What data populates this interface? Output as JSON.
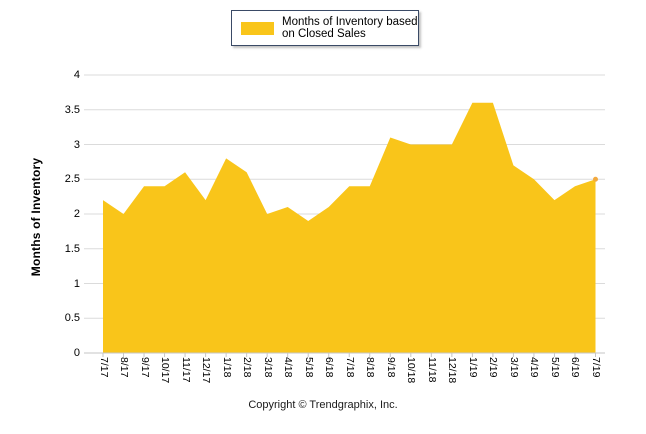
{
  "legend": {
    "label_line1": "Months of Inventory based",
    "label_line2": "on Closed Sales",
    "swatch_color": "#F9C51A",
    "border_color": "#3a4a66"
  },
  "chart_data": {
    "type": "area",
    "title": "Months of Inventory based on Closed Sales",
    "series_name": "Months of Inventory based on Closed Sales",
    "categories": [
      "7/17",
      "8/17",
      "9/17",
      "10/17",
      "11/17",
      "12/17",
      "1/18",
      "2/18",
      "3/18",
      "4/18",
      "5/18",
      "6/18",
      "7/18",
      "8/18",
      "9/18",
      "10/18",
      "11/18",
      "12/18",
      "1/19",
      "2/19",
      "3/19",
      "4/19",
      "5/19",
      "6/19",
      "7/19"
    ],
    "values": [
      2.2,
      2.0,
      2.4,
      2.4,
      2.6,
      2.2,
      2.8,
      2.6,
      2.0,
      2.1,
      1.9,
      2.1,
      2.4,
      2.4,
      3.1,
      3.0,
      3.0,
      3.0,
      3.6,
      3.6,
      2.7,
      2.5,
      2.2,
      2.4,
      2.5
    ],
    "xlabel": "",
    "ylabel": "Months of Inventory",
    "ylim": [
      0,
      4
    ],
    "ytick_step": 0.5,
    "yticks": [
      "0",
      "0.5",
      "1",
      "1.5",
      "2",
      "2.5",
      "3",
      "3.5",
      "4"
    ],
    "grid": true,
    "legend_position": "top-center",
    "fill_color": "#F9C51A",
    "gridline_color": "#DBDBDB",
    "axis_line_color": "#C6C6C6",
    "end_marker_color": "#F2A93F"
  },
  "footer": {
    "copyright": "Copyright © Trendgraphix, Inc."
  }
}
